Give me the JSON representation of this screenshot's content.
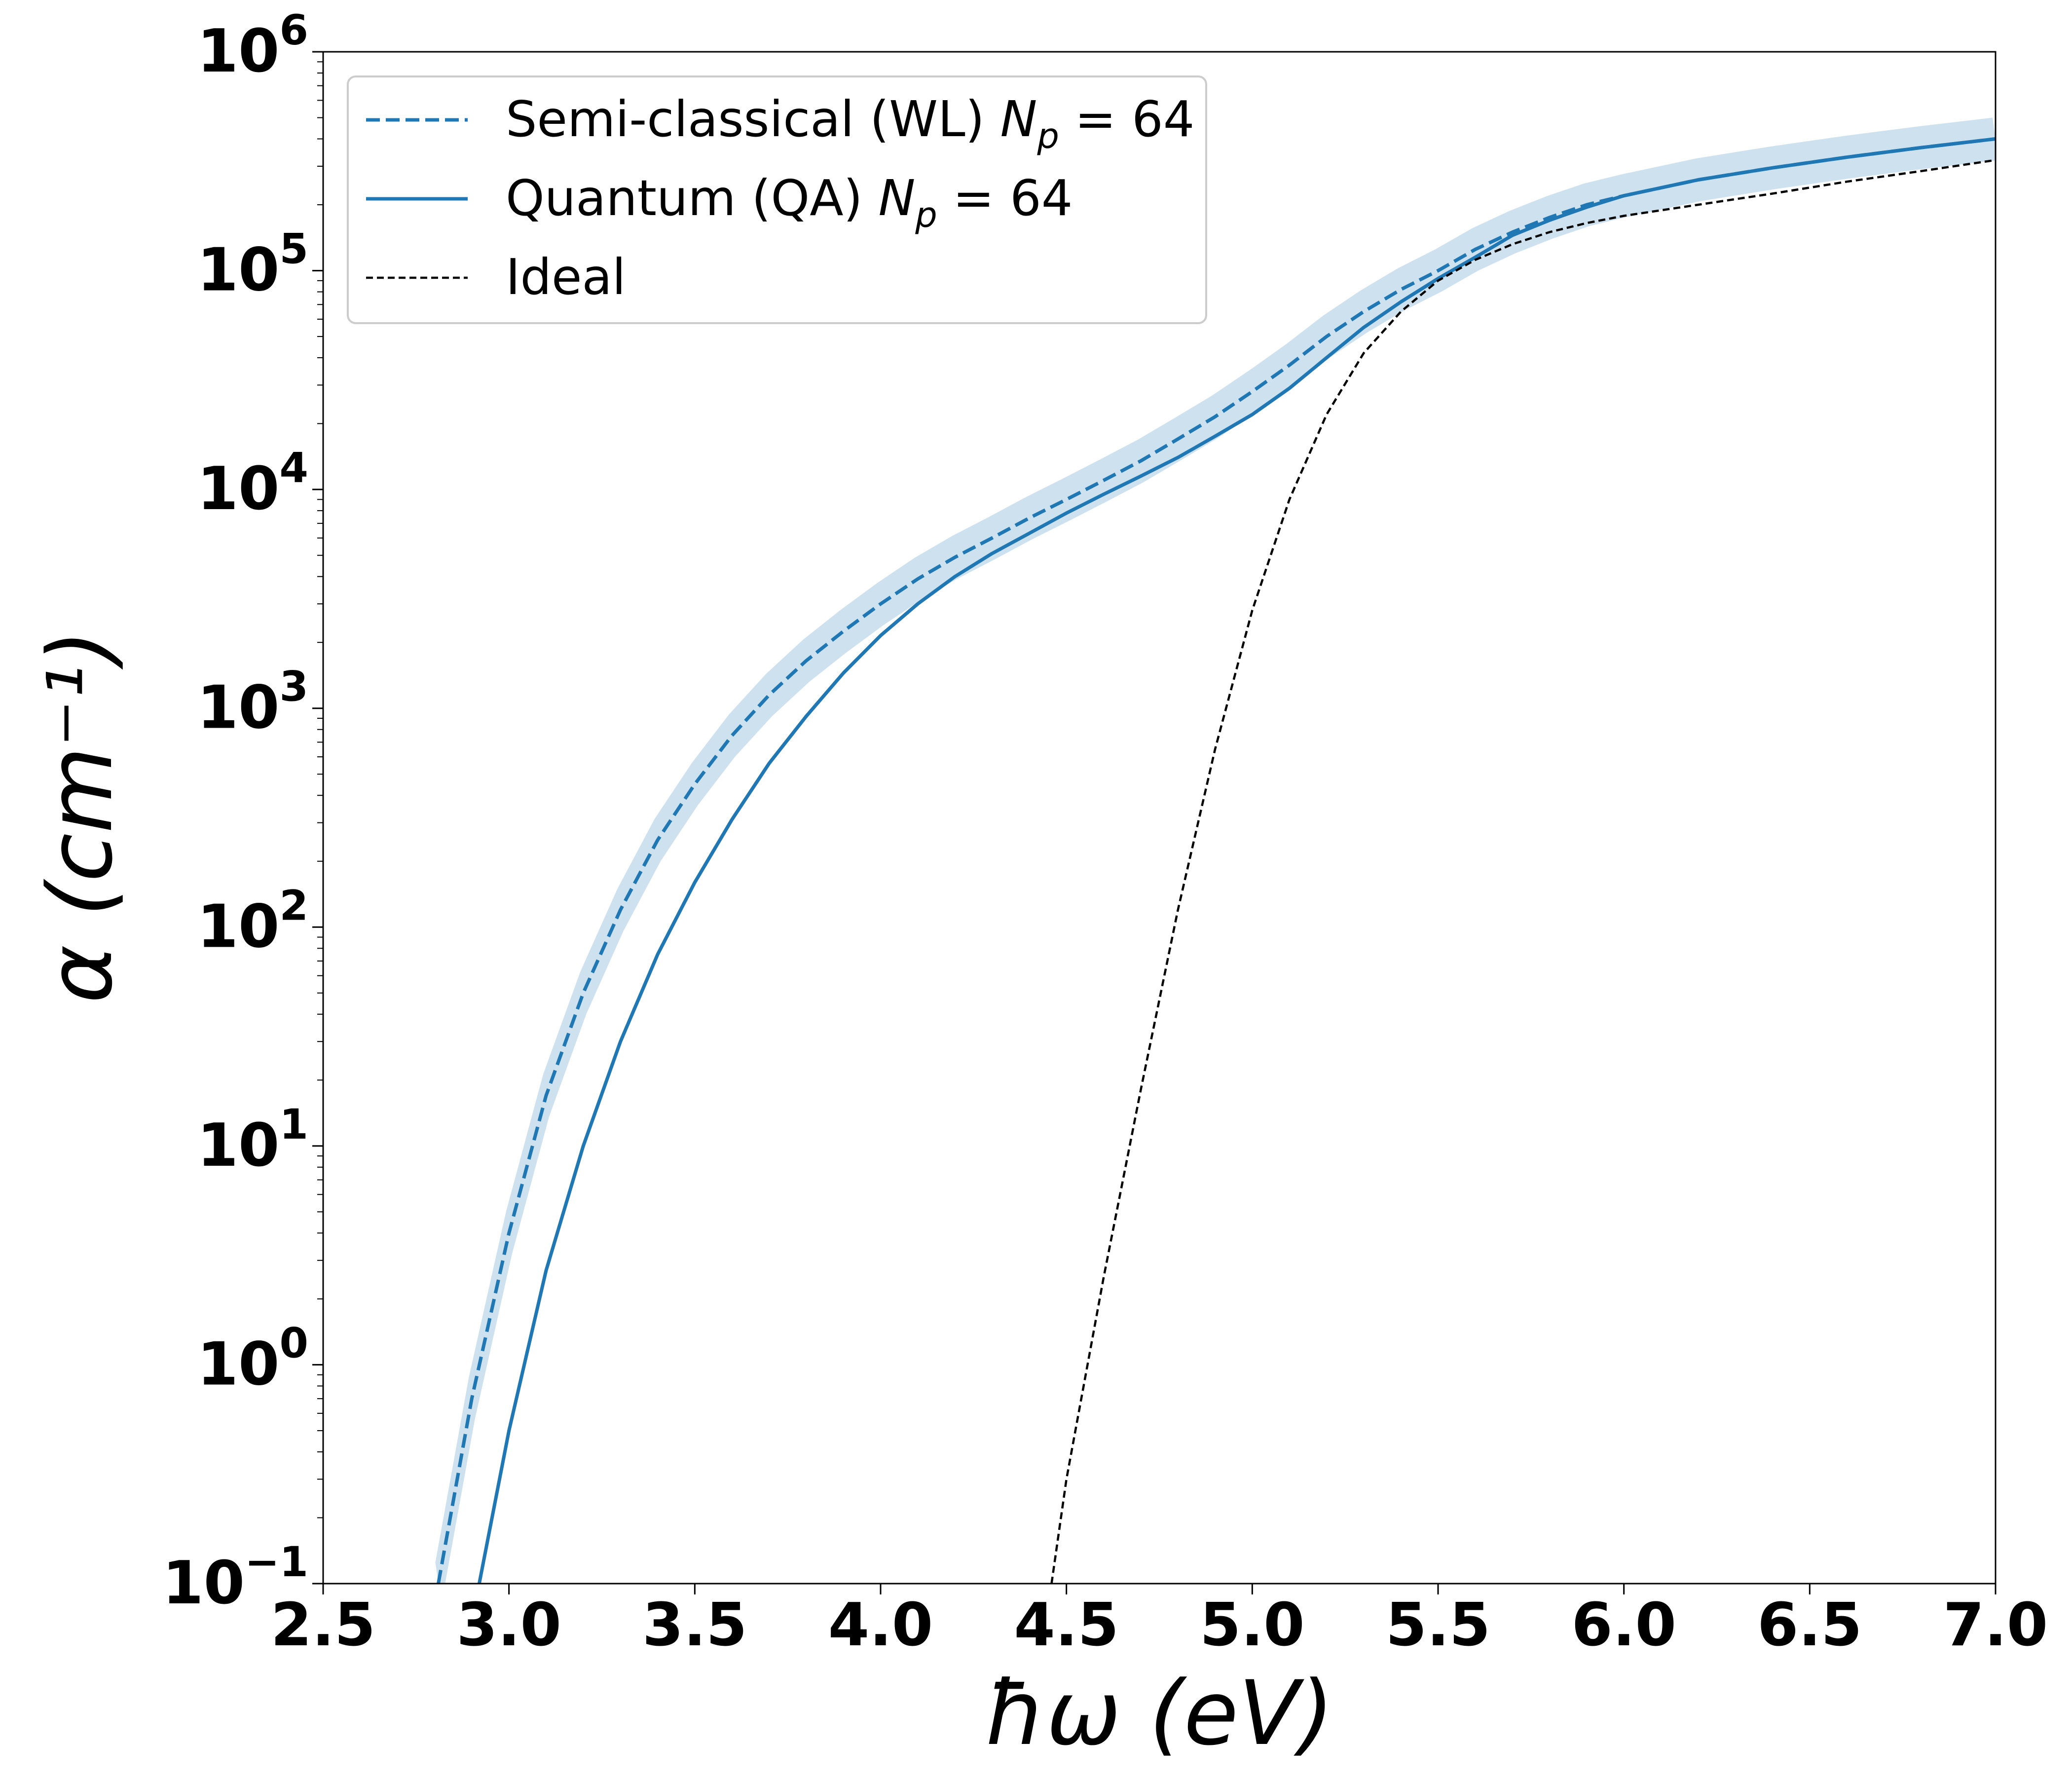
{
  "chart_data": {
    "type": "line",
    "xlabel": "ħω (eV)",
    "ylabel": "α (cm⁻¹)",
    "xlim": [
      2.5,
      7.0
    ],
    "ylim": [
      0.1,
      1000000
    ],
    "yscale": "log",
    "grid": false,
    "legend_placement": "top-left",
    "x_ticks": [
      "2.5",
      "3.0",
      "3.5",
      "4.0",
      "4.5",
      "5.0",
      "5.5",
      "6.0",
      "6.5",
      "7.0"
    ],
    "y_ticks": [
      {
        "base": "10",
        "exp": "−1"
      },
      {
        "base": "10",
        "exp": "0"
      },
      {
        "base": "10",
        "exp": "1"
      },
      {
        "base": "10",
        "exp": "2"
      },
      {
        "base": "10",
        "exp": "3"
      },
      {
        "base": "10",
        "exp": "4"
      },
      {
        "base": "10",
        "exp": "5"
      },
      {
        "base": "10",
        "exp": "6"
      }
    ],
    "series": [
      {
        "name": "Semi-classical (WL) Np = 64",
        "legend_prefix": "Semi-classical (WL) ",
        "legend_math": "N",
        "legend_sub": "p",
        "legend_suffix": " = 64",
        "color": "#1f77b4",
        "style": "dashed",
        "band": true,
        "x": [
          2.81,
          2.9,
          3.0,
          3.1,
          3.2,
          3.3,
          3.4,
          3.5,
          3.6,
          3.7,
          3.8,
          3.9,
          4.0,
          4.1,
          4.2,
          4.3,
          4.4,
          4.5,
          4.6,
          4.7,
          4.8,
          4.9,
          5.0,
          5.1,
          5.2,
          5.3,
          5.4,
          5.5,
          5.6,
          5.7,
          5.8,
          5.9,
          6.0,
          6.2,
          6.4,
          6.6,
          6.8,
          7.0
        ],
        "y": [
          0.1,
          0.7,
          4,
          17,
          50,
          120,
          250,
          450,
          750,
          1150,
          1650,
          2250,
          3000,
          3900,
          4900,
          6000,
          7400,
          9000,
          11000,
          13500,
          17000,
          21500,
          28000,
          37000,
          50000,
          65000,
          82000,
          100000,
          125000,
          150000,
          175000,
          200000,
          220000,
          260000,
          295000,
          330000,
          365000,
          400000
        ]
      },
      {
        "name": "Quantum (QA) Np = 64",
        "legend_prefix": "Quantum (QA) ",
        "legend_math": "N",
        "legend_sub": "p",
        "legend_suffix": " = 64",
        "color": "#1f77b4",
        "style": "solid",
        "band": false,
        "x": [
          2.92,
          3.0,
          3.1,
          3.2,
          3.3,
          3.4,
          3.5,
          3.6,
          3.7,
          3.8,
          3.9,
          4.0,
          4.1,
          4.2,
          4.3,
          4.4,
          4.5,
          4.6,
          4.7,
          4.8,
          4.9,
          5.0,
          5.1,
          5.2,
          5.3,
          5.4,
          5.5,
          5.6,
          5.7,
          5.8,
          5.9,
          6.0,
          6.2,
          6.4,
          6.6,
          6.8,
          7.0
        ],
        "y": [
          0.1,
          0.5,
          2.7,
          10,
          30,
          75,
          160,
          310,
          560,
          920,
          1450,
          2150,
          3000,
          4000,
          5100,
          6300,
          7800,
          9500,
          11500,
          14000,
          17500,
          22000,
          29000,
          40000,
          55000,
          72000,
          92000,
          115000,
          145000,
          170000,
          195000,
          220000,
          260000,
          295000,
          330000,
          365000,
          400000
        ]
      },
      {
        "name": "Ideal",
        "legend_prefix": "Ideal",
        "legend_math": "",
        "legend_sub": "",
        "legend_suffix": "",
        "color": "#000000",
        "style": "dashed-thin",
        "band": false,
        "x": [
          4.46,
          4.5,
          4.6,
          4.7,
          4.8,
          4.9,
          5.0,
          5.1,
          5.2,
          5.3,
          5.4,
          5.5,
          5.6,
          5.7,
          5.8,
          5.9,
          6.0,
          6.2,
          6.4,
          6.6,
          6.8,
          7.0
        ],
        "y": [
          0.1,
          0.3,
          2.5,
          18,
          120,
          650,
          2800,
          9000,
          22000,
          42000,
          65000,
          90000,
          112000,
          132000,
          150000,
          165000,
          178000,
          200000,
          225000,
          255000,
          285000,
          320000
        ]
      }
    ]
  }
}
